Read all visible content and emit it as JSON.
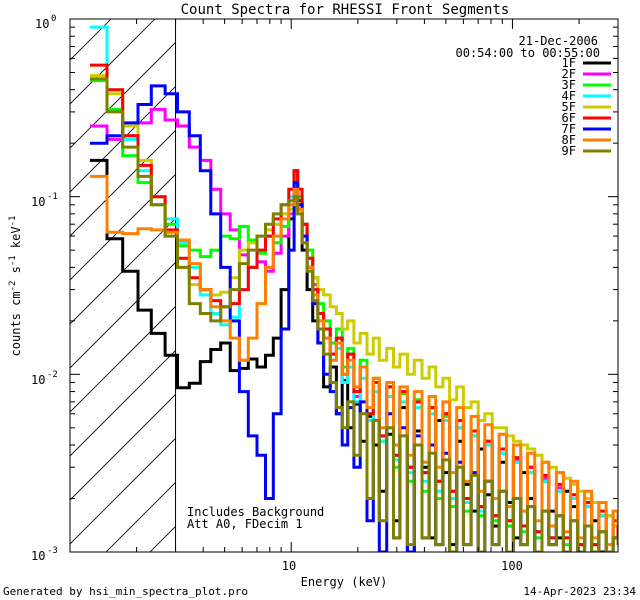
{
  "chart_data": {
    "type": "line",
    "title": "Count Spectra for RHESSI Front Segments",
    "xlabel": "Energy (keV)",
    "ylabel": "counts cm^-2 s^-1 keV^-1",
    "ylabel_parts": [
      "counts cm",
      "-2",
      " s",
      "-1",
      " keV",
      "-1"
    ],
    "xscale": "log",
    "yscale": "log",
    "xlim": [
      1.0,
      300
    ],
    "ylim": [
      0.001,
      1.0
    ],
    "x_tick_labels": [
      {
        "value": 10,
        "label": "10"
      },
      {
        "value": 100,
        "label": "100"
      }
    ],
    "y_tick_labels": [
      {
        "value": 1.0,
        "base": "10",
        "exp": "0"
      },
      {
        "value": 0.1,
        "base": "10",
        "exp": "-1"
      },
      {
        "value": 0.01,
        "base": "10",
        "exp": "-2"
      },
      {
        "value": 0.001,
        "base": "10",
        "exp": "-3"
      }
    ],
    "hatched_region_max_energy": 3.0,
    "legend": {
      "position": "top-right",
      "date": "21-Dec-2006",
      "time_range": "00:54:00 to 00:55:00"
    },
    "annotations": [
      "Includes Background",
      "Att A0, FDecim 1"
    ],
    "energy_bins": [
      1.23,
      1.47,
      1.73,
      2.03,
      2.33,
      2.69,
      3.06,
      3.46,
      3.88,
      4.33,
      4.8,
      5.3,
      5.83,
      6.4,
      7.0,
      7.65,
      8.3,
      9.0,
      9.75,
      10.3,
      10.7,
      11.2,
      11.8,
      12.5,
      13.2,
      14.0,
      15.0,
      16.0,
      17.0,
      18.0,
      19.2,
      20.5,
      22.0,
      23.5,
      25.0,
      27.0,
      29.0,
      31.0,
      33.5,
      36.0,
      39.0,
      42.0,
      45.0,
      48.5,
      52.0,
      56.0,
      60.0,
      65.0,
      70.0,
      75.0,
      81.0,
      87.0,
      94.0,
      101.0,
      109.0,
      117.0,
      126.0,
      136.0,
      146.0,
      158.0,
      170.0,
      183.0,
      197.0,
      212.0,
      228.0,
      246.0,
      265.0,
      285.0,
      300.0
    ],
    "series": [
      {
        "name": "1F",
        "color": "#000000",
        "values": [
          0.16,
          0.058,
          0.038,
          0.023,
          0.017,
          0.0128,
          0.0084,
          0.0089,
          0.0118,
          0.0138,
          0.015,
          0.0105,
          0.0108,
          0.0122,
          0.011,
          0.0128,
          0.016,
          0.03,
          0.075,
          0.14,
          0.095,
          0.05,
          0.03,
          0.02,
          0.015,
          0.0085,
          0.011,
          0.006,
          0.0092,
          0.005,
          0.0068,
          0.0042,
          0.0058,
          0.004,
          0.0022,
          0.0046,
          0.0015,
          0.0065,
          0.001,
          0.0048,
          0.003,
          0.0012,
          0.0055,
          0.0028,
          0.0011,
          0.0042,
          0.0024,
          0.0017,
          0.0038,
          0.0021,
          0.0014,
          0.0032,
          0.0019,
          0.0012,
          0.0028,
          0.002,
          0.001,
          0.0025,
          0.0017,
          0.0012,
          0.0022,
          0.0018,
          0.0011,
          0.002,
          0.0015,
          0.001,
          0.0016,
          0.0012,
          0.0011
        ]
      },
      {
        "name": "2F",
        "color": "#ff00ff",
        "values": [
          0.25,
          0.21,
          0.22,
          0.26,
          0.31,
          0.27,
          0.25,
          0.19,
          0.16,
          0.11,
          0.08,
          0.065,
          0.047,
          0.04,
          0.043,
          0.038,
          0.048,
          0.06,
          0.08,
          0.12,
          0.1,
          0.07,
          0.045,
          0.032,
          0.022,
          0.018,
          0.013,
          0.016,
          0.009,
          0.013,
          0.0075,
          0.011,
          0.006,
          0.009,
          0.0045,
          0.0085,
          0.0035,
          0.008,
          0.003,
          0.007,
          0.0028,
          0.0065,
          0.0025,
          0.006,
          0.0022,
          0.0055,
          0.002,
          0.0048,
          0.0018,
          0.0042,
          0.0016,
          0.0038,
          0.0015,
          0.0033,
          0.0014,
          0.003,
          0.0013,
          0.0026,
          0.0012,
          0.0023,
          0.0012,
          0.002,
          0.0011,
          0.0018,
          0.0011,
          0.0016,
          0.001,
          0.0014,
          0.0012
        ]
      },
      {
        "name": "3F",
        "color": "#00ff00",
        "values": [
          0.45,
          0.31,
          0.17,
          0.12,
          0.09,
          0.07,
          0.053,
          0.05,
          0.046,
          0.05,
          0.06,
          0.058,
          0.068,
          0.057,
          0.048,
          0.06,
          0.055,
          0.068,
          0.09,
          0.12,
          0.1,
          0.07,
          0.05,
          0.035,
          0.025,
          0.02,
          0.015,
          0.018,
          0.011,
          0.014,
          0.0085,
          0.012,
          0.006,
          0.0095,
          0.0042,
          0.0085,
          0.003,
          0.0078,
          0.0025,
          0.0072,
          0.0022,
          0.0065,
          0.002,
          0.0058,
          0.0018,
          0.005,
          0.0017,
          0.0045,
          0.0016,
          0.004,
          0.0015,
          0.0036,
          0.0014,
          0.0032,
          0.0013,
          0.0028,
          0.0012,
          0.0025,
          0.0012,
          0.0022,
          0.0011,
          0.002,
          0.0011,
          0.0018,
          0.001,
          0.0016,
          0.001,
          0.0014,
          0.0011
        ]
      },
      {
        "name": "4F",
        "color": "#00ffff",
        "values": [
          0.9,
          0.4,
          0.21,
          0.14,
          0.1,
          0.075,
          0.055,
          0.04,
          0.028,
          0.022,
          0.019,
          0.021,
          0.03,
          0.04,
          0.05,
          0.06,
          0.07,
          0.08,
          0.1,
          0.12,
          0.09,
          0.06,
          0.04,
          0.028,
          0.02,
          0.016,
          0.012,
          0.014,
          0.009,
          0.011,
          0.007,
          0.0095,
          0.0055,
          0.008,
          0.0042,
          0.0075,
          0.0033,
          0.007,
          0.0028,
          0.0065,
          0.0025,
          0.006,
          0.0022,
          0.0055,
          0.002,
          0.005,
          0.0019,
          0.0045,
          0.0017,
          0.004,
          0.0016,
          0.0036,
          0.0015,
          0.0032,
          0.0014,
          0.0028,
          0.0013,
          0.0025,
          0.0012,
          0.0022,
          0.0012,
          0.002,
          0.0011,
          0.0018,
          0.0011,
          0.0016,
          0.001,
          0.0014,
          0.0011
        ]
      },
      {
        "name": "5F",
        "color": "#cccc00",
        "values": [
          0.48,
          0.38,
          0.25,
          0.16,
          0.1,
          0.06,
          0.04,
          0.032,
          0.03,
          0.028,
          0.029,
          0.035,
          0.05,
          0.055,
          0.06,
          0.065,
          0.07,
          0.08,
          0.085,
          0.1,
          0.08,
          0.06,
          0.045,
          0.035,
          0.03,
          0.028,
          0.024,
          0.022,
          0.018,
          0.02,
          0.015,
          0.017,
          0.013,
          0.016,
          0.012,
          0.014,
          0.011,
          0.013,
          0.01,
          0.012,
          0.0095,
          0.011,
          0.0085,
          0.0095,
          0.0072,
          0.0085,
          0.0065,
          0.007,
          0.0055,
          0.006,
          0.005,
          0.005,
          0.0045,
          0.0042,
          0.004,
          0.0038,
          0.0035,
          0.0032,
          0.003,
          0.0028,
          0.0026,
          0.0024,
          0.0022,
          0.002,
          0.0019,
          0.0017,
          0.0016,
          0.0014,
          0.0013
        ]
      },
      {
        "name": "6F",
        "color": "#ff0000",
        "values": [
          0.55,
          0.4,
          0.22,
          0.15,
          0.1,
          0.065,
          0.045,
          0.035,
          0.03,
          0.026,
          0.024,
          0.025,
          0.03,
          0.04,
          0.05,
          0.06,
          0.075,
          0.09,
          0.11,
          0.14,
          0.11,
          0.07,
          0.045,
          0.03,
          0.022,
          0.018,
          0.013,
          0.016,
          0.01,
          0.013,
          0.008,
          0.011,
          0.006,
          0.009,
          0.0045,
          0.0085,
          0.0035,
          0.008,
          0.003,
          0.007,
          0.0028,
          0.0065,
          0.0025,
          0.006,
          0.0022,
          0.0055,
          0.002,
          0.0048,
          0.0018,
          0.0042,
          0.0016,
          0.0038,
          0.0015,
          0.0034,
          0.0014,
          0.003,
          0.0013,
          0.0027,
          0.0012,
          0.0024,
          0.0012,
          0.0021,
          0.0011,
          0.0019,
          0.0011,
          0.0017,
          0.001,
          0.0015,
          0.0011
        ]
      },
      {
        "name": "7F",
        "color": "#0000ff",
        "values": [
          0.2,
          0.22,
          0.26,
          0.33,
          0.42,
          0.38,
          0.3,
          0.22,
          0.14,
          0.08,
          0.04,
          0.02,
          0.008,
          0.0045,
          0.0035,
          0.002,
          0.006,
          0.018,
          0.05,
          0.12,
          0.09,
          0.06,
          0.04,
          0.025,
          0.015,
          0.01,
          0.008,
          0.006,
          0.004,
          0.0065,
          0.003,
          0.007,
          0.0015,
          0.0055,
          0.001,
          0.006,
          0.0012,
          0.005,
          0.001,
          0.0045,
          0.0012,
          0.004,
          0.0011,
          0.0036,
          0.001,
          0.0032,
          0.0011,
          0.0028,
          0.001,
          0.0025,
          0.0011,
          0.0022,
          0.001,
          0.002,
          0.0011,
          0.0018,
          0.001,
          0.0017,
          0.0011,
          0.0016,
          0.001,
          0.0015,
          0.001,
          0.0014,
          0.001,
          0.0013,
          0.001,
          0.0012,
          0.0011
        ]
      },
      {
        "name": "8F",
        "color": "#ff8000",
        "values": [
          0.13,
          0.063,
          0.062,
          0.066,
          0.065,
          0.063,
          0.057,
          0.042,
          0.03,
          0.024,
          0.02,
          0.016,
          0.012,
          0.016,
          0.025,
          0.04,
          0.06,
          0.075,
          0.09,
          0.11,
          0.085,
          0.055,
          0.04,
          0.028,
          0.02,
          0.016,
          0.012,
          0.015,
          0.01,
          0.012,
          0.0085,
          0.011,
          0.0065,
          0.0095,
          0.005,
          0.009,
          0.004,
          0.0085,
          0.0035,
          0.008,
          0.0032,
          0.0075,
          0.003,
          0.007,
          0.0028,
          0.0065,
          0.0025,
          0.0058,
          0.0022,
          0.0052,
          0.002,
          0.0046,
          0.0018,
          0.004,
          0.0017,
          0.0036,
          0.0015,
          0.0032,
          0.0014,
          0.0028,
          0.0013,
          0.0025,
          0.0012,
          0.0022,
          0.0012,
          0.0019,
          0.0011,
          0.0017,
          0.0014
        ]
      },
      {
        "name": "9F",
        "color": "#808000",
        "values": [
          0.46,
          0.3,
          0.19,
          0.13,
          0.09,
          0.06,
          0.04,
          0.025,
          0.022,
          0.02,
          0.024,
          0.03,
          0.042,
          0.05,
          0.06,
          0.07,
          0.08,
          0.09,
          0.095,
          0.1,
          0.08,
          0.055,
          0.038,
          0.026,
          0.018,
          0.013,
          0.009,
          0.0065,
          0.005,
          0.007,
          0.0035,
          0.006,
          0.002,
          0.0055,
          0.0015,
          0.005,
          0.0012,
          0.0045,
          0.0011,
          0.004,
          0.0012,
          0.0036,
          0.0011,
          0.0033,
          0.001,
          0.003,
          0.0011,
          0.0027,
          0.001,
          0.0025,
          0.0011,
          0.0022,
          0.001,
          0.002,
          0.0011,
          0.0018,
          0.001,
          0.0017,
          0.0011,
          0.0016,
          0.001,
          0.0015,
          0.001,
          0.0014,
          0.001,
          0.0013,
          0.001,
          0.0012,
          0.0011
        ]
      }
    ]
  },
  "footer": {
    "generated_by": "Generated by hsi_min_spectra_plot.pro",
    "timestamp": "14-Apr-2023 23:34"
  }
}
